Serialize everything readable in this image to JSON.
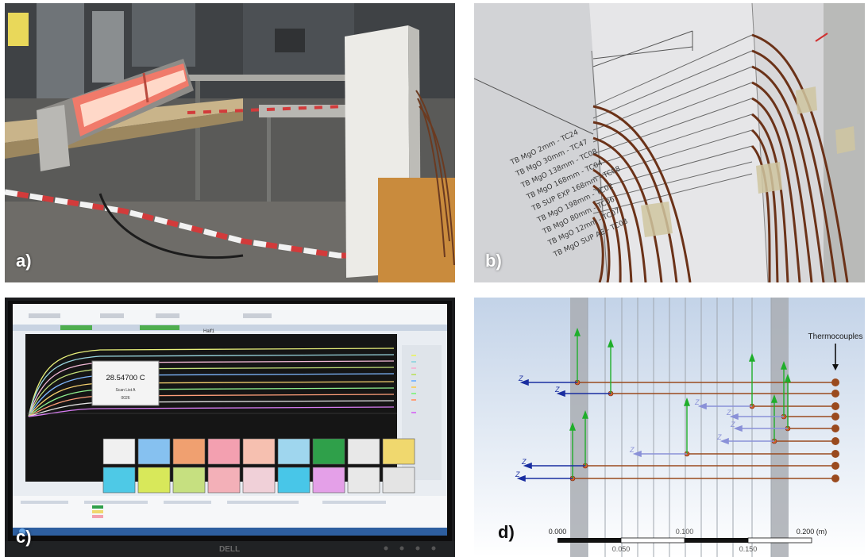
{
  "panels": {
    "a": {
      "label": "a)"
    },
    "b": {
      "label": "b)",
      "sensor_labels": [
        "TB MgO 2mm - TC24",
        "TB MgO 30mm - TC47",
        "TB MgO 138mm - TC08",
        "TB MgO 168mm - TC04",
        "TB SUP EXP 168mm - TC08",
        "TB MgO 198mm - TC02",
        "TB MgO 80mm - TC06",
        "TB MgO 12mm - TC07",
        "TB MgO SUP AE - TC08"
      ]
    },
    "c": {
      "label": "c)",
      "popup_value": "28.54700 C",
      "popup_sub": "Scan List A",
      "popup_code": "0026",
      "chart_title": "Half1",
      "brand": "DELL"
    },
    "d": {
      "label": "d)",
      "callout": "Thermocouples",
      "axis_label": "Z",
      "scale": {
        "top_ticks": [
          "0.000",
          "0.100",
          "0.200 (m)"
        ],
        "bottom_ticks": [
          "0.050",
          "0.150"
        ]
      }
    }
  }
}
